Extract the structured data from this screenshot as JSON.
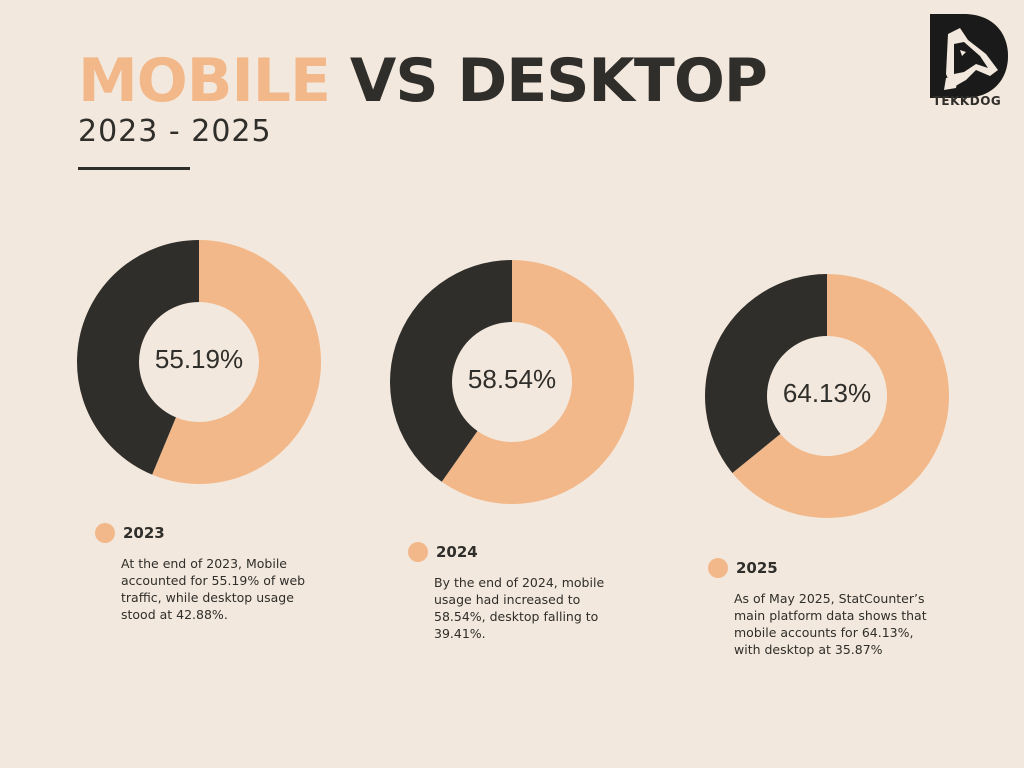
{
  "title_mobile": "MOBILE",
  "title_rest": "VS DESKTOP",
  "subtitle": "2023 - 2025",
  "brand": "TEKKDOG",
  "colors": {
    "mobile": "#f2b889",
    "desktop": "#2f2e2a",
    "background": "#f3e8dd"
  },
  "chart_data": [
    {
      "type": "pie",
      "categories": [
        "Mobile",
        "Desktop"
      ],
      "values": [
        55.19,
        42.88
      ],
      "center_label": "55.19%",
      "year": "2023",
      "description": "At the end of 2023, Mobile accounted for 55.19% of web traffic, while desktop usage stood at 42.88%."
    },
    {
      "type": "pie",
      "categories": [
        "Mobile",
        "Desktop"
      ],
      "values": [
        58.54,
        39.41
      ],
      "center_label": "58.54%",
      "year": "2024",
      "description": "By the end of 2024, mobile usage had increased to 58.54%, desktop falling to 39.41%."
    },
    {
      "type": "pie",
      "categories": [
        "Mobile",
        "Desktop"
      ],
      "values": [
        64.13,
        35.87
      ],
      "center_label": "64.13%",
      "year": "2025",
      "description": "As of May 2025, StatCounter’s main platform data shows that mobile accounts for 64.13%, with desktop at 35.87%"
    }
  ]
}
